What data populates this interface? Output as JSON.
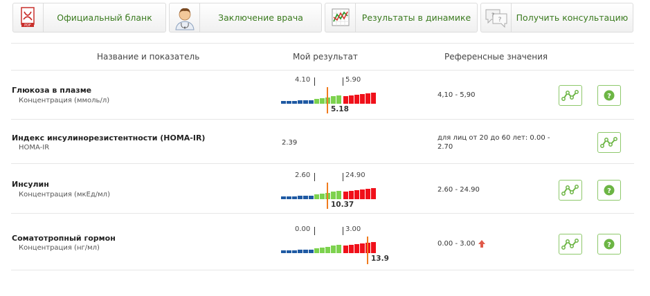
{
  "top_buttons": [
    {
      "label": "Официальный бланк",
      "icon": "pdf-icon"
    },
    {
      "label": "Заключение врача",
      "icon": "doctor-icon"
    },
    {
      "label": "Результаты в динамике",
      "icon": "chart-icon"
    },
    {
      "label": "Получить консультацию",
      "icon": "chat-icon"
    }
  ],
  "table_header": {
    "name": "Название и показатель",
    "result": "Мой результат",
    "reference": "Референсные значения"
  },
  "rows": [
    {
      "name": "Глюкоза в плазме",
      "sub": "Концентрация (ммоль/л)",
      "low": "4.10",
      "high": "5.90",
      "value": "5.18",
      "reference": "4,10 - 5,90",
      "status": "normal"
    },
    {
      "name": "Индекс инсулинорезистентности (HOMA-IR)",
      "sub": "HOMA-IR",
      "value": "2.39",
      "reference_line1": "для лиц от 20 до 60 лет: 0.00 -",
      "reference_line2": "2.70"
    },
    {
      "name": "Инсулин",
      "sub": "Концентрация (мкЕд/мл)",
      "low": "2.60",
      "high": "24.90",
      "value": "10.37",
      "reference": "2.60 - 24.90",
      "status": "normal"
    },
    {
      "name": "Соматотропный гормон",
      "sub": "Концентрация (нг/мл)",
      "low": "0.00",
      "high": "3.00",
      "value": "13.9",
      "reference": "0.00 - 3.00",
      "status": "high"
    }
  ],
  "colors": {
    "low": "#1f5aa3",
    "normal": "#7dd24e",
    "high": "#f0101a",
    "marker": "#f07b1e",
    "accent": "#3a7a1e"
  }
}
